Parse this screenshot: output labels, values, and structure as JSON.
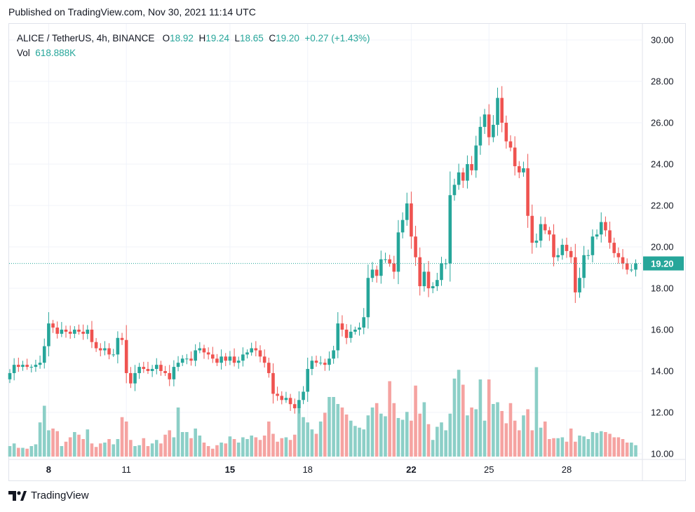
{
  "header": {
    "published": "Published on TradingView.com, Nov 30, 2021 11:14 UTC"
  },
  "legend": {
    "symbol": "ALICE / TetherUS, 4h, BINANCE",
    "o_label": "O",
    "o": "18.92",
    "h_label": "H",
    "h": "19.24",
    "l_label": "L",
    "l": "18.65",
    "c_label": "C",
    "c": "19.20",
    "change": "+0.27 (+1.43%)",
    "vol_label": "Vol",
    "vol": "618.888K"
  },
  "brand": {
    "name": "TradingView",
    "logo_icon": "tradingview-logo-icon"
  },
  "colors": {
    "up": "#26a69a",
    "down": "#ef5350",
    "up_vol": "#8ccfc7",
    "down_vol": "#f5a3a1",
    "grid": "#f0f3fa"
  },
  "chart_data": {
    "type": "candlestick",
    "ylim": [
      10,
      30.5
    ],
    "y_ticks": [
      "30.00",
      "28.00",
      "26.00",
      "24.00",
      "22.00",
      "20.00",
      "18.00",
      "16.00",
      "14.00",
      "12.00",
      "10.00"
    ],
    "x_ticks": [
      {
        "label": "8",
        "bar": 9,
        "bold": true
      },
      {
        "label": "11",
        "bar": 27,
        "bold": false
      },
      {
        "label": "15",
        "bar": 51,
        "bold": true
      },
      {
        "label": "18",
        "bar": 69,
        "bold": false
      },
      {
        "label": "22",
        "bar": 93,
        "bold": true
      },
      {
        "label": "25",
        "bar": 111,
        "bold": false
      },
      {
        "label": "28",
        "bar": 129,
        "bold": false
      }
    ],
    "last_price": "19.20",
    "closes": [
      13.9,
      14.3,
      14.2,
      14.3,
      14.2,
      14.2,
      14.3,
      14.4,
      15.2,
      16.3,
      16.1,
      15.8,
      16.0,
      15.9,
      15.8,
      16.0,
      15.9,
      15.8,
      16.0,
      15.4,
      15.1,
      15.0,
      15.1,
      14.8,
      14.8,
      15.6,
      15.5,
      13.9,
      13.4,
      13.9,
      14.2,
      14.1,
      14.0,
      14.1,
      14.3,
      14.0,
      13.9,
      13.6,
      14.2,
      14.4,
      14.6,
      14.6,
      14.5,
      15.0,
      15.1,
      14.9,
      14.8,
      14.6,
      14.4,
      14.7,
      14.5,
      14.7,
      14.4,
      14.5,
      14.8,
      14.9,
      15.1,
      15.0,
      14.7,
      14.4,
      13.9,
      12.9,
      12.8,
      12.6,
      12.7,
      12.4,
      12.2,
      12.6,
      13.0,
      14.1,
      14.5,
      14.4,
      14.4,
      14.3,
      14.6,
      15.0,
      16.3,
      16.0,
      15.6,
      15.9,
      16.0,
      16.1,
      16.6,
      18.5,
      18.9,
      18.6,
      19.4,
      19.4,
      19.2,
      18.8,
      20.7,
      21.3,
      22.1,
      20.5,
      19.5,
      18.1,
      18.8,
      18.0,
      18.1,
      18.4,
      19.2,
      19.2,
      22.5,
      23.0,
      23.6,
      23.2,
      24.0,
      23.7,
      24.9,
      25.8,
      26.4,
      25.3,
      25.9,
      27.2,
      26.0,
      25.1,
      24.8,
      23.9,
      23.6,
      23.8,
      21.5,
      20.2,
      20.3,
      21.1,
      20.8,
      20.6,
      19.5,
      19.6,
      20.1,
      19.8,
      19.5,
      17.8,
      18.5,
      19.6,
      19.6,
      20.5,
      20.6,
      21.2,
      20.8,
      20.2,
      19.7,
      19.5,
      19.2,
      18.9,
      18.9,
      19.2
    ],
    "volumes_rel": [
      0.12,
      0.15,
      0.1,
      0.1,
      0.09,
      0.12,
      0.14,
      0.39,
      0.58,
      0.3,
      0.32,
      0.29,
      0.12,
      0.17,
      0.22,
      0.28,
      0.25,
      0.2,
      0.31,
      0.15,
      0.11,
      0.15,
      0.16,
      0.2,
      0.14,
      0.2,
      0.45,
      0.4,
      0.19,
      0.12,
      0.13,
      0.21,
      0.12,
      0.15,
      0.19,
      0.15,
      0.25,
      0.3,
      0.22,
      0.56,
      0.28,
      0.28,
      0.21,
      0.32,
      0.24,
      0.16,
      0.12,
      0.09,
      0.13,
      0.16,
      0.15,
      0.23,
      0.2,
      0.16,
      0.22,
      0.2,
      0.24,
      0.22,
      0.19,
      0.24,
      0.4,
      0.26,
      0.17,
      0.21,
      0.22,
      0.19,
      0.25,
      0.55,
      0.45,
      0.39,
      0.31,
      0.26,
      0.4,
      0.5,
      0.68,
      0.68,
      0.6,
      0.56,
      0.48,
      0.41,
      0.35,
      0.33,
      0.31,
      0.47,
      0.56,
      0.61,
      0.49,
      0.46,
      0.86,
      0.61,
      0.44,
      0.42,
      0.51,
      0.41,
      0.81,
      0.49,
      0.62,
      0.37,
      0.19,
      0.34,
      0.39,
      0.3,
      0.49,
      0.89,
      0.99,
      0.82,
      0.47,
      0.56,
      0.54,
      0.88,
      0.41,
      0.88,
      0.6,
      0.62,
      0.52,
      0.38,
      0.61,
      0.41,
      0.3,
      0.47,
      0.54,
      0.3,
      1.02,
      0.33,
      0.4,
      0.2,
      0.21,
      0.21,
      0.22,
      0.17,
      0.32,
      0.17,
      0.24,
      0.23,
      0.2,
      0.28,
      0.27,
      0.29,
      0.28,
      0.26,
      0.22,
      0.22,
      0.2,
      0.16,
      0.16,
      0.13
    ]
  }
}
